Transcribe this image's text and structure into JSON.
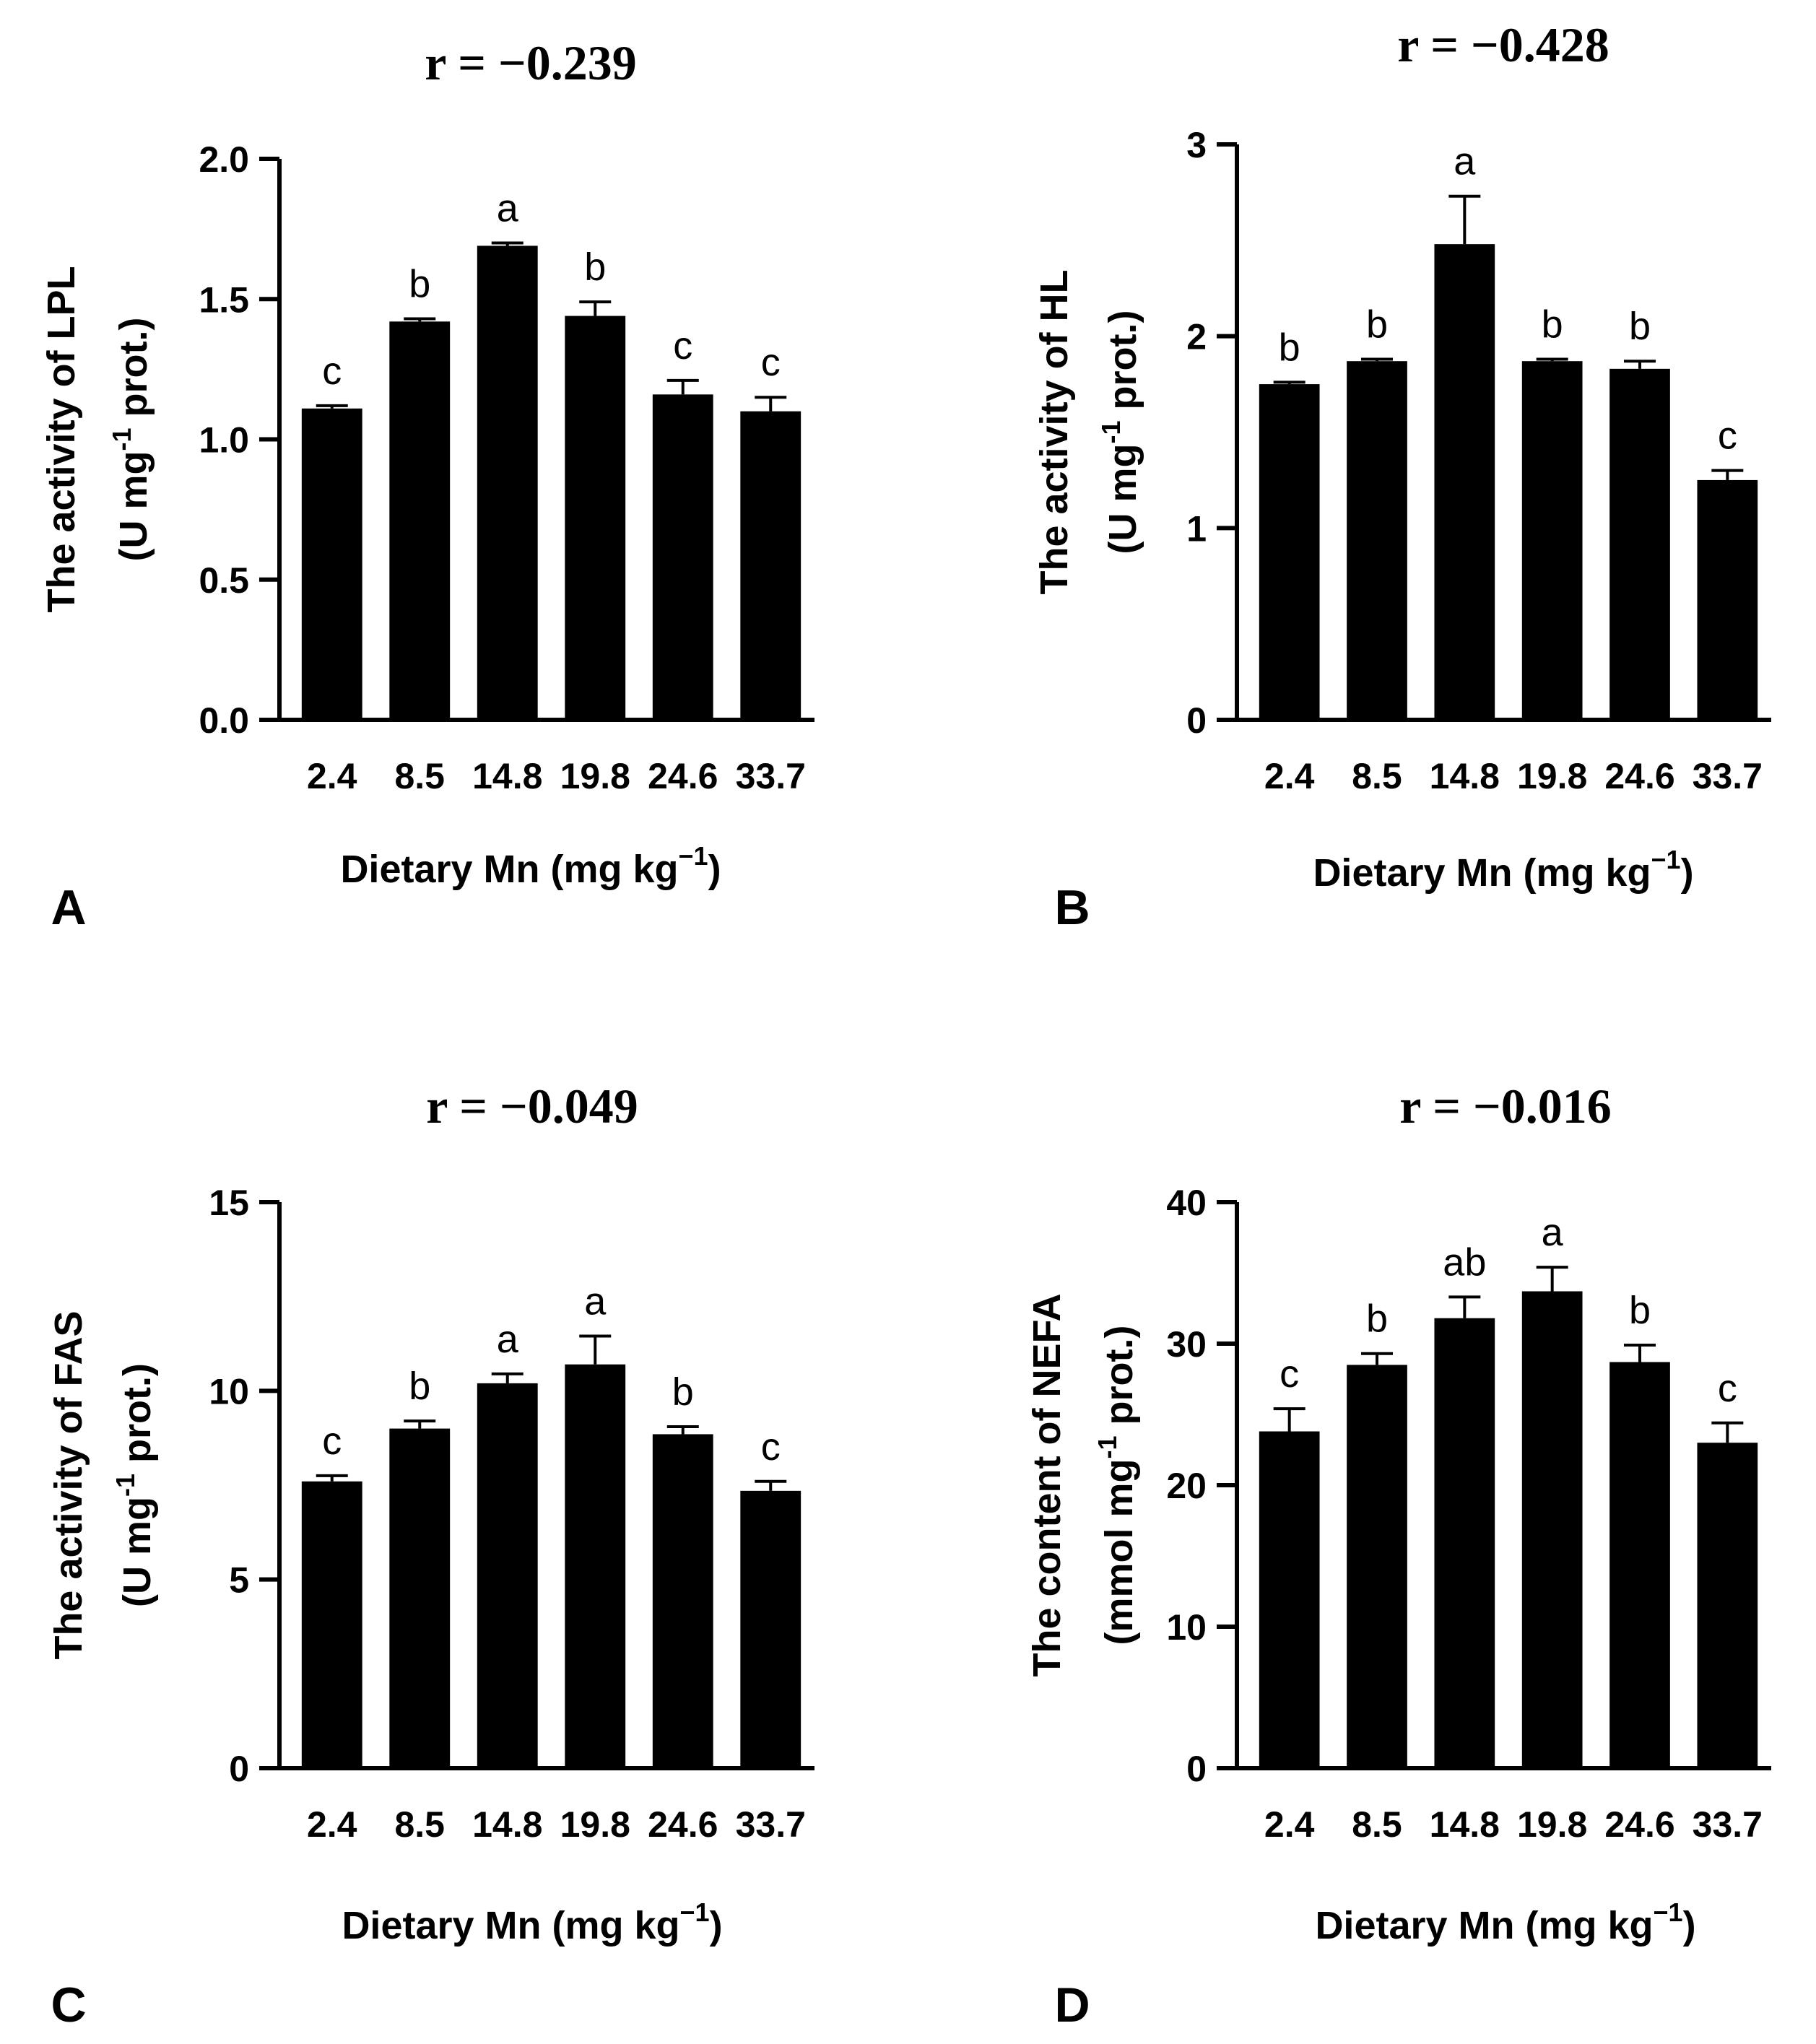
{
  "chart_data": [
    {
      "panel": "A",
      "type": "bar",
      "title": "r = −0.239",
      "ylabel_line1": "The activity of LPL",
      "ylabel_line2_pre": "(U mg",
      "ylabel_line2_sup": "-1",
      "ylabel_line2_post": " prot.)",
      "xlabel_pre": "Dietary Mn (mg kg",
      "xlabel_sup": "−1",
      "xlabel_post": ")",
      "categories": [
        "2.4",
        "8.5",
        "14.8",
        "19.8",
        "24.6",
        "33.7"
      ],
      "values": [
        1.11,
        1.42,
        1.69,
        1.44,
        1.16,
        1.1
      ],
      "errors": [
        0.01,
        0.01,
        0.01,
        0.05,
        0.05,
        0.05
      ],
      "letters": [
        "c",
        "b",
        "a",
        "b",
        "c",
        "c"
      ],
      "ylim": [
        0,
        2.0
      ],
      "yticks": [
        0.0,
        0.5,
        1.0,
        1.5,
        2.0
      ],
      "ytick_labels": [
        "0.0",
        "0.5",
        "1.0",
        "1.5",
        "2.0"
      ]
    },
    {
      "panel": "B",
      "type": "bar",
      "title": "r = −0.428",
      "ylabel_line1": "The activity of HL",
      "ylabel_line2_pre": "(U mg",
      "ylabel_line2_sup": "-1",
      "ylabel_line2_post": " prot.)",
      "xlabel_pre": "Dietary Mn (mg kg",
      "xlabel_sup": "−1",
      "xlabel_post": ")",
      "categories": [
        "2.4",
        "8.5",
        "14.8",
        "19.8",
        "24.6",
        "33.7"
      ],
      "values": [
        1.75,
        1.87,
        2.48,
        1.87,
        1.83,
        1.25
      ],
      "errors": [
        0.01,
        0.01,
        0.25,
        0.01,
        0.04,
        0.05
      ],
      "letters": [
        "b",
        "b",
        "a",
        "b",
        "b",
        "c"
      ],
      "ylim": [
        0,
        3
      ],
      "yticks": [
        0,
        1,
        2,
        3
      ],
      "ytick_labels": [
        "0",
        "1",
        "2",
        "3"
      ]
    },
    {
      "panel": "C",
      "type": "bar",
      "title": "r = −0.049",
      "ylabel_line1": "The activity of FAS",
      "ylabel_line2_pre": "(U mg",
      "ylabel_line2_sup": "-1",
      "ylabel_line2_post": " prot.)",
      "xlabel_pre": "Dietary Mn (mg kg",
      "xlabel_sup": "−1",
      "xlabel_post": ")",
      "categories": [
        "2.4",
        "8.5",
        "14.8",
        "19.8",
        "24.6",
        "33.7"
      ],
      "values": [
        7.6,
        9.0,
        10.2,
        10.7,
        8.85,
        7.35
      ],
      "errors": [
        0.15,
        0.2,
        0.25,
        0.75,
        0.2,
        0.25
      ],
      "letters": [
        "c",
        "b",
        "a",
        "a",
        "b",
        "c"
      ],
      "ylim": [
        0,
        15
      ],
      "yticks": [
        0,
        5,
        10,
        15
      ],
      "ytick_labels": [
        "0",
        "5",
        "10",
        "15"
      ]
    },
    {
      "panel": "D",
      "type": "bar",
      "title": "r = −0.016",
      "ylabel_line1": "The content of NEFA",
      "ylabel_line2_pre": "(mmol mg",
      "ylabel_line2_sup": "-1",
      "ylabel_line2_post": " prot.)",
      "xlabel_pre": "Dietary Mn (mg kg",
      "xlabel_sup": "−1",
      "xlabel_post": ")",
      "categories": [
        "2.4",
        "8.5",
        "14.8",
        "19.8",
        "24.6",
        "33.7"
      ],
      "values": [
        23.8,
        28.5,
        31.8,
        33.7,
        28.7,
        23.0
      ],
      "errors": [
        1.6,
        0.8,
        1.5,
        1.7,
        1.2,
        1.4
      ],
      "letters": [
        "c",
        "b",
        "ab",
        "a",
        "b",
        "c"
      ],
      "ylim": [
        0,
        40
      ],
      "yticks": [
        0,
        10,
        20,
        30,
        40
      ],
      "ytick_labels": [
        "0",
        "10",
        "20",
        "30",
        "40"
      ]
    }
  ]
}
